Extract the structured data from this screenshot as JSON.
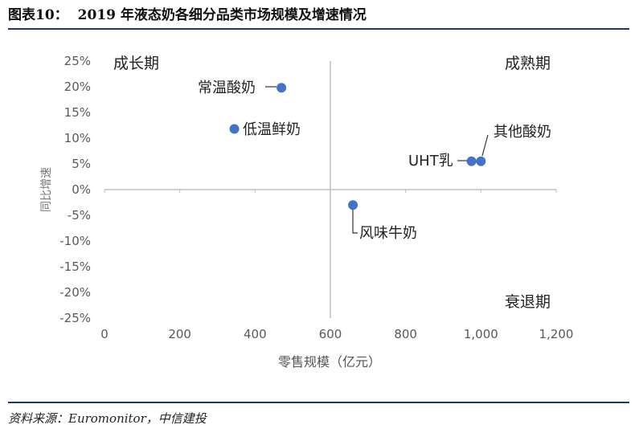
{
  "header": {
    "figure_no": "图表10：",
    "title": "2019 年液态奶各细分品类市场规模及增速情况"
  },
  "footer": {
    "source": "资料来源：Euromonitor，中信建投"
  },
  "chart_data": {
    "type": "scatter",
    "title": "",
    "xlabel": "零售规模（亿元）",
    "ylabel": "同比增速",
    "xlim": [
      0,
      1200
    ],
    "ylim": [
      -25,
      25
    ],
    "x_ticks": [
      "0",
      "200",
      "400",
      "600",
      "800",
      "1,000",
      "1,200"
    ],
    "y_ticks": [
      "25%",
      "20%",
      "15%",
      "10%",
      "5%",
      "0%",
      "-5%",
      "-10%",
      "-15%",
      "-20%",
      "-25%"
    ],
    "quadrant_divider": {
      "x": 600,
      "y": 0
    },
    "quadrant_labels": {
      "top_left": "成长期",
      "top_right": "成熟期",
      "bottom_right": "衰退期"
    },
    "marker_color": "#4472c4",
    "points": [
      {
        "label": "常温酸奶",
        "x": 470,
        "y": 19.8
      },
      {
        "label": "低温鲜奶",
        "x": 345,
        "y": 11.8
      },
      {
        "label": "UHT乳",
        "x": 975,
        "y": 5.5
      },
      {
        "label": "其他酸奶",
        "x": 1000,
        "y": 5.5
      },
      {
        "label": "风味牛奶",
        "x": 660,
        "y": -3.0
      }
    ]
  }
}
